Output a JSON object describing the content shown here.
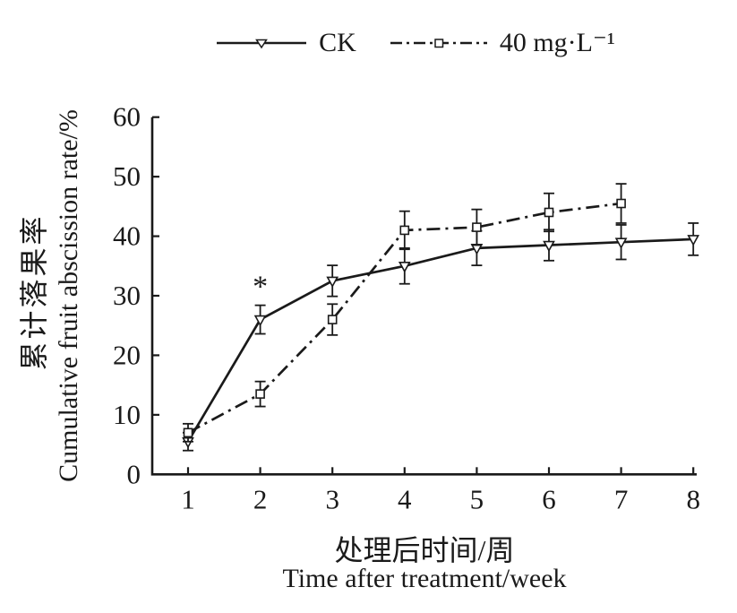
{
  "ink_color": "#1a1a1a",
  "background_color": "#ffffff",
  "chart_data": {
    "type": "line",
    "x": [
      1,
      2,
      3,
      4,
      5,
      6,
      7,
      8
    ],
    "series": [
      {
        "name": "CK",
        "marker": "triangle-down",
        "line_style": "solid",
        "values": [
          5.5,
          26,
          32.5,
          35,
          38,
          38.5,
          39,
          39.5
        ],
        "errors": [
          1.5,
          2.4,
          2.6,
          3,
          2.9,
          2.6,
          2.9,
          2.7
        ]
      },
      {
        "name": "40 mg·L⁻¹",
        "marker": "square",
        "line_style": "dash-dot",
        "values": [
          7,
          13.5,
          26,
          41,
          41.5,
          44,
          45.5
        ],
        "errors": [
          1.5,
          2.1,
          2.6,
          3.2,
          3,
          3.2,
          3.3
        ]
      }
    ],
    "annotations": [
      {
        "text": "*",
        "series": "CK",
        "x": 2
      }
    ],
    "xticks": [
      1,
      2,
      3,
      4,
      5,
      6,
      7,
      8
    ],
    "yticks": [
      0,
      10,
      20,
      30,
      40,
      50,
      60
    ],
    "xlim": [
      0.5,
      8.05
    ],
    "ylim": [
      0,
      60
    ],
    "grid": false,
    "legend_position": "top-center",
    "ylabel_zh": "累计落果率",
    "ylabel_en": "Cumulative fruit abscission rate/%",
    "xlabel_zh": "处理后时间/周",
    "xlabel_en": "Time after treatment/week"
  }
}
